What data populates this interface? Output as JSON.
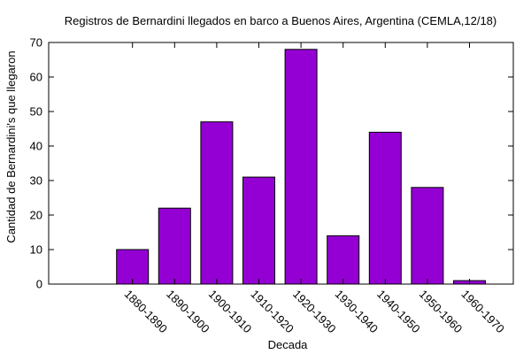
{
  "chart_data": {
    "type": "bar",
    "title": "Registros de Bernardini llegados en barco a Buenos Aires, Argentina (CEMLA,12/18)",
    "xlabel": "Decada",
    "ylabel": "Cantidad de Bernardini's que llegaron",
    "categories": [
      "1880-1890",
      "1890-1900",
      "1900-1910",
      "1910-1920",
      "1920-1930",
      "1930-1940",
      "1940-1950",
      "1950-1960",
      "1960-1970"
    ],
    "values": [
      10,
      22,
      47,
      31,
      68,
      14,
      44,
      28,
      1
    ],
    "ylim": [
      0,
      70
    ],
    "yticks": [
      0,
      10,
      20,
      30,
      40,
      50,
      60,
      70
    ],
    "bar_color": "#9400d3",
    "grid": false,
    "legend": "none"
  }
}
